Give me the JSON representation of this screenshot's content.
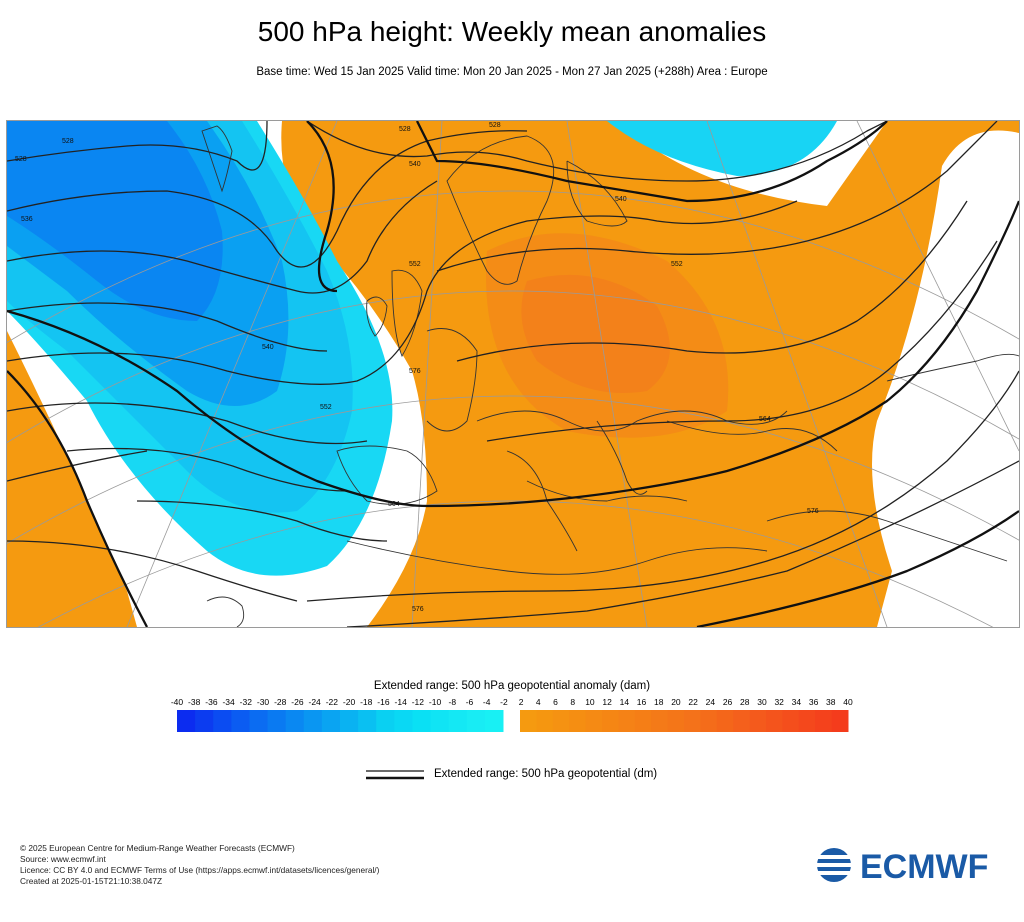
{
  "title": "500 hPa height: Weekly mean anomalies",
  "subtitle": "Base time: Wed 15 Jan 2025 Valid time: Mon 20 Jan 2025 - Mon 27 Jan 2025 (+288h) Area : Europe",
  "map": {
    "contour_labels": [
      "528",
      "528",
      "528",
      "528",
      "536",
      "540",
      "540",
      "540",
      "552",
      "552",
      "552",
      "564",
      "564",
      "576",
      "576",
      "576"
    ],
    "colors": {
      "negative_anomaly": "#1aa8f0",
      "positive_anomaly": "#f59a10",
      "strong_positive": "#f07a1a",
      "land_outline": "#333333",
      "contour": "#222222"
    }
  },
  "colorbar": {
    "title": "Extended range: 500 hPa geopotential anomaly (dam)",
    "ticks": [
      "-40",
      "-38",
      "-36",
      "-34",
      "-32",
      "-30",
      "-28",
      "-26",
      "-24",
      "-22",
      "-20",
      "-18",
      "-16",
      "-14",
      "-12",
      "-10",
      "-8",
      "-6",
      "-4",
      "-2",
      "2",
      "4",
      "6",
      "8",
      "10",
      "12",
      "14",
      "16",
      "18",
      "20",
      "22",
      "24",
      "26",
      "28",
      "30",
      "32",
      "34",
      "36",
      "38",
      "40"
    ],
    "negative_colors": [
      "#0c2cf0",
      "#0c3cf0",
      "#0b4cf2",
      "#0b5cf2",
      "#0b6cf2",
      "#0a7af2",
      "#0a88f2",
      "#0a96f2",
      "#0aa4f2",
      "#0ab2f2",
      "#0ac0f2",
      "#0ad0f2",
      "#0ad8f4",
      "#0ae0f4",
      "#10e4f4",
      "#14e8f4",
      "#18ecf4",
      "#18f0f4"
    ],
    "positive_colors": [
      "#f59a10",
      "#f59610",
      "#f59212",
      "#f58e12",
      "#f58a14",
      "#f58614",
      "#f58216",
      "#f57e16",
      "#f47a18",
      "#f47618",
      "#f4721a",
      "#f46c1a",
      "#f4661a",
      "#f4601c",
      "#f45a1c",
      "#f4541c",
      "#f44e1c",
      "#f4481c",
      "#f4421c",
      "#f43c1c"
    ]
  },
  "legend": {
    "line_label": "Extended range: 500 hPa geopotential (dm)"
  },
  "footer": {
    "line1": "© 2025 European Centre for Medium-Range Weather Forecasts (ECMWF)",
    "line2": "Source: www.ecmwf.int",
    "line3": "Licence: CC BY 4.0 and ECMWF Terms of Use (https://apps.ecmwf.int/datasets/licences/general/)",
    "line4": "Created at 2025-01-15T21:10:38.047Z"
  },
  "logo": {
    "text": "ECMWF",
    "color": "#1a5aa6"
  }
}
